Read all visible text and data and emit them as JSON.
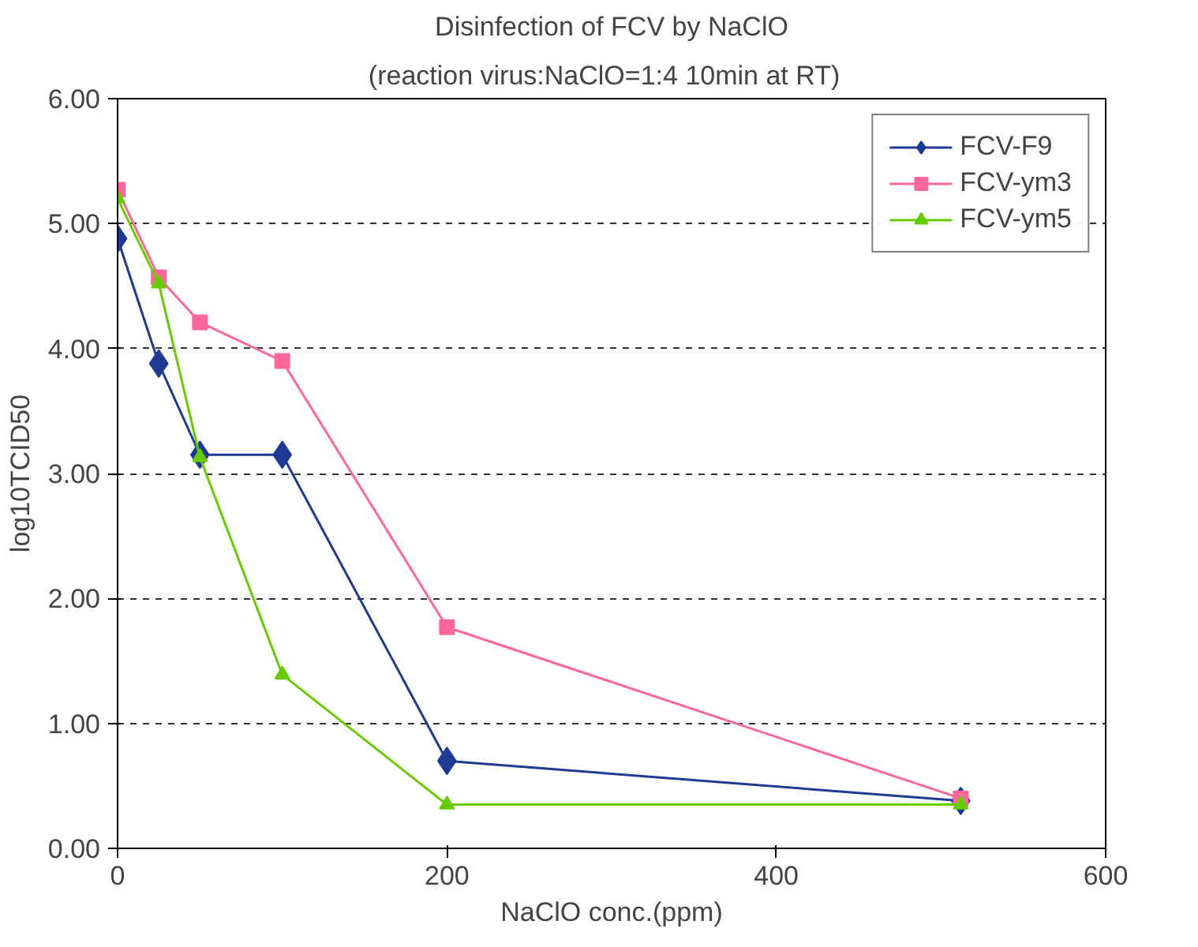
{
  "chart_data": {
    "type": "line",
    "title": "Disinfection of FCV by NaClO",
    "subtitle": "(reaction   virus:NaClO=1:4 10min at RT)",
    "xlabel": "NaClO conc.(ppm)",
    "ylabel": "log10TCID50",
    "x": [
      0,
      25,
      50,
      100,
      200,
      512
    ],
    "series": [
      {
        "name": "FCV-F9",
        "color": "#1f3a93",
        "marker": "diamond",
        "values": [
          4.88,
          3.88,
          3.15,
          3.15,
          0.7,
          0.38
        ]
      },
      {
        "name": "FCV-ym3",
        "color": "#ff6699",
        "marker": "square",
        "values": [
          5.27,
          4.57,
          4.21,
          3.9,
          1.77,
          0.4
        ]
      },
      {
        "name": "FCV-ym5",
        "color": "#66cc00",
        "marker": "triangle",
        "values": [
          5.2,
          4.52,
          3.13,
          1.39,
          0.35,
          0.35
        ]
      }
    ],
    "xlim": [
      0,
      600
    ],
    "xticks": [
      0,
      200,
      400,
      600
    ],
    "ylim": [
      0,
      6
    ],
    "yticks": [
      {
        "value": 0,
        "label": "0.00"
      },
      {
        "value": 1,
        "label": "1.00"
      },
      {
        "value": 2,
        "label": "2.00"
      },
      {
        "value": 3,
        "label": "3.00"
      },
      {
        "value": 4,
        "label": "4.00"
      },
      {
        "value": 5,
        "label": "5.00"
      },
      {
        "value": 6,
        "label": "6.00"
      }
    ],
    "grid": "y",
    "legend": "top right",
    "line_style": "solid"
  }
}
